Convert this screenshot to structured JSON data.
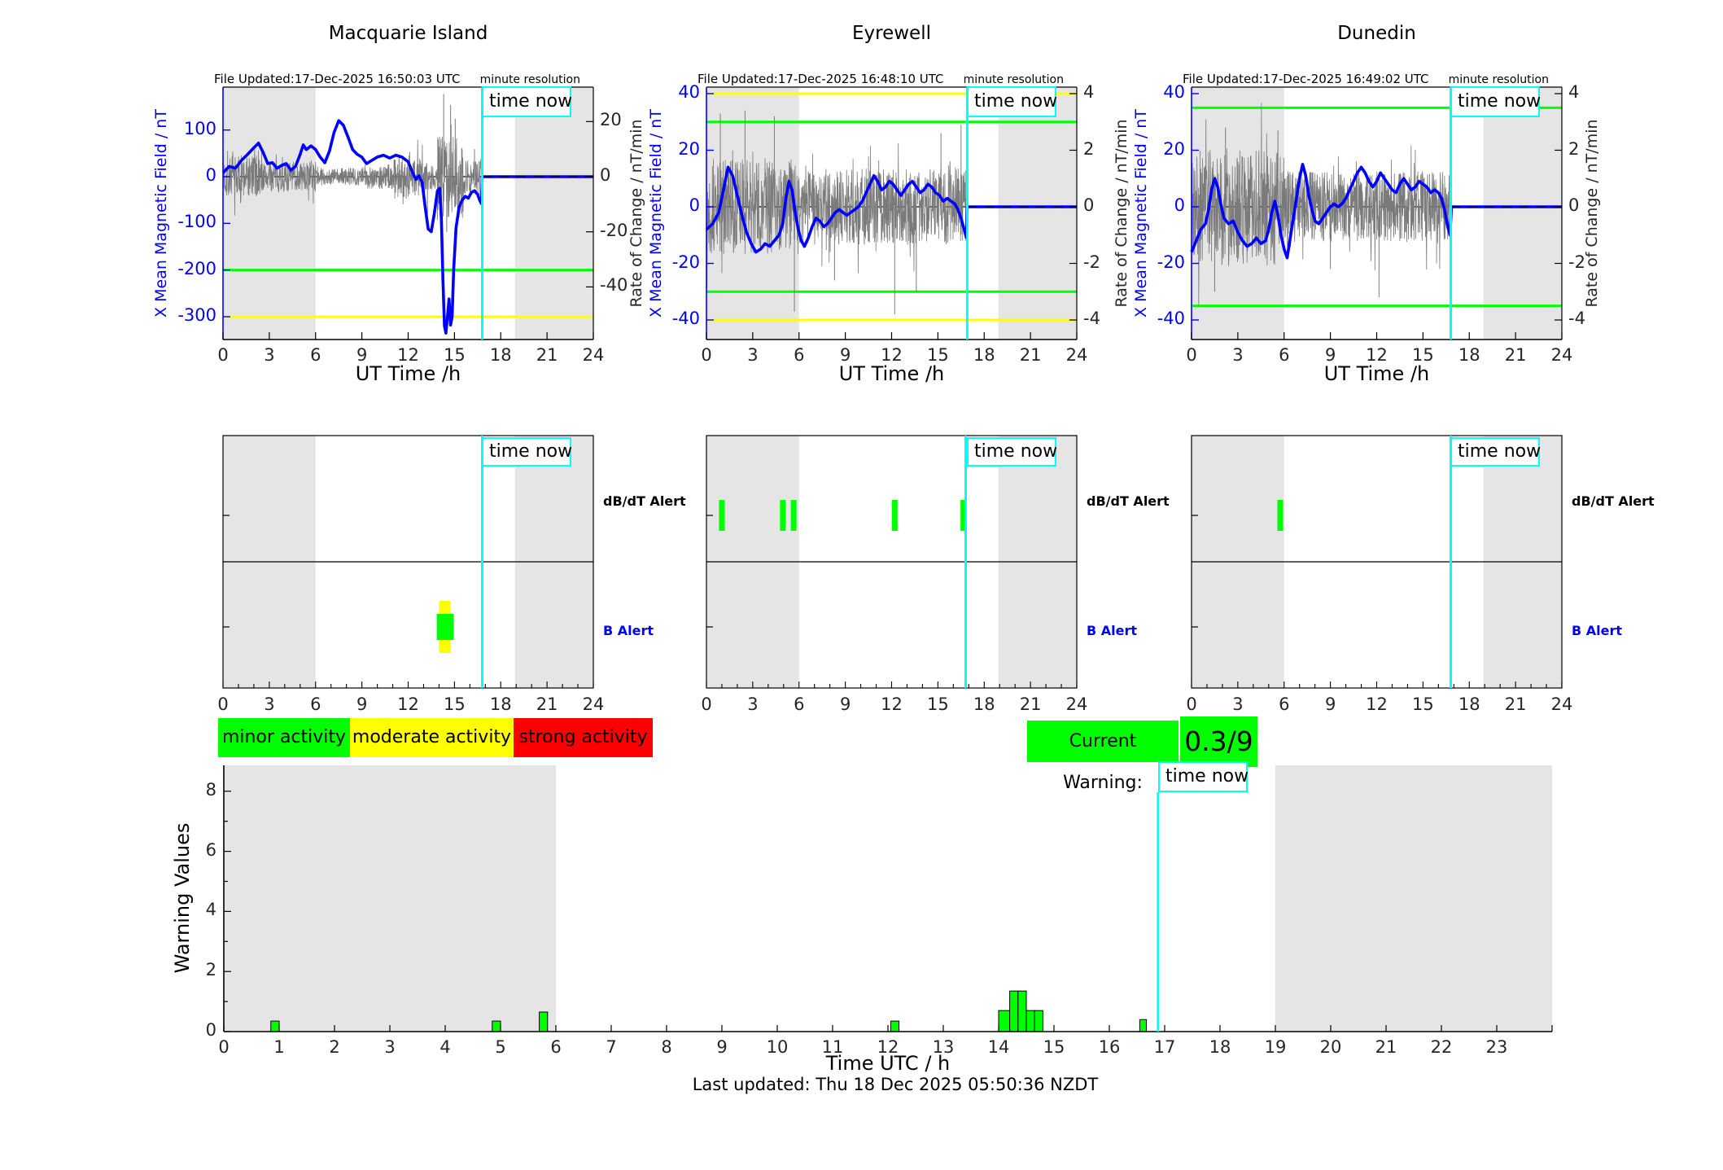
{
  "colors": {
    "accent_blue": "#0000FF",
    "noise_gray": "#7A7A7A",
    "band_gray": "#E5E5E5",
    "cyan": "#00FFFF",
    "green": "#00FF00",
    "yellow": "#FFFF00",
    "red": "#FF0000"
  },
  "labels": {
    "time_now": "time now",
    "minute_resolution": "minute resolution",
    "ut_time": "UT Time /h",
    "x_mean": "X Mean Magnetic Field / nT",
    "rate": "Rate of Change / nT/min",
    "warning_values": "Warning Values",
    "time_utc": "Time UTC / h",
    "footer": "Last updated: Thu 18 Dec 2025 05:50:36 NZDT",
    "dbdt_row": "dB/dT Alert",
    "b_row": "B Alert"
  },
  "legend": {
    "items": [
      {
        "label": "minor activity",
        "color": "#00FF00"
      },
      {
        "label": "moderate activity",
        "color": "#FFFF00"
      },
      {
        "label": "strong activity",
        "color": "#FF0000"
      }
    ]
  },
  "current_warning": {
    "label": "Current Warning:",
    "value": "0.3/9",
    "color": "#00FF00"
  },
  "chart_data": [
    {
      "type": "line",
      "station": "Macquarie Island",
      "file_updated": "File Updated:17-Dec-2025 16:50:03 UTC",
      "xlabel": "UT Time /h",
      "x_ticks": [
        0,
        3,
        6,
        9,
        12,
        15,
        18,
        21,
        24
      ],
      "left_axis": {
        "label": "X Mean Magnetic Field / nT",
        "ticks": [
          100,
          0,
          -100,
          -200,
          -300
        ],
        "range": [
          -349,
          192
        ]
      },
      "right_axis": {
        "label": "Rate of Change / nT/min",
        "ticks": [
          20,
          0,
          -20,
          -40
        ],
        "range": [
          -59,
          32.5
        ]
      },
      "thresholds": [
        {
          "color": "#00FF00",
          "value": -200
        },
        {
          "color": "#FFFF00",
          "value": -300
        }
      ],
      "shaded_hours": [
        [
          0,
          6
        ],
        [
          18.92,
          24
        ]
      ],
      "time_now": 16.8,
      "mean_field_series": [
        [
          0,
          8
        ],
        [
          0.4,
          22
        ],
        [
          0.8,
          18
        ],
        [
          1.2,
          35
        ],
        [
          1.6,
          48
        ],
        [
          2,
          62
        ],
        [
          2.3,
          72
        ],
        [
          2.6,
          52
        ],
        [
          2.9,
          28
        ],
        [
          3.2,
          30
        ],
        [
          3.5,
          18
        ],
        [
          3.8,
          24
        ],
        [
          4.1,
          28
        ],
        [
          4.4,
          14
        ],
        [
          4.7,
          22
        ],
        [
          5,
          48
        ],
        [
          5.2,
          68
        ],
        [
          5.4,
          58
        ],
        [
          5.7,
          66
        ],
        [
          6,
          58
        ],
        [
          6.3,
          42
        ],
        [
          6.6,
          30
        ],
        [
          6.9,
          55
        ],
        [
          7.2,
          95
        ],
        [
          7.5,
          120
        ],
        [
          7.8,
          110
        ],
        [
          8.1,
          85
        ],
        [
          8.4,
          58
        ],
        [
          8.7,
          48
        ],
        [
          9,
          42
        ],
        [
          9.3,
          28
        ],
        [
          9.6,
          34
        ],
        [
          10,
          42
        ],
        [
          10.4,
          46
        ],
        [
          10.8,
          40
        ],
        [
          11.2,
          46
        ],
        [
          11.6,
          42
        ],
        [
          12,
          32
        ],
        [
          12.3,
          8
        ],
        [
          12.5,
          -6
        ],
        [
          12.7,
          2
        ],
        [
          12.9,
          -12
        ],
        [
          13.1,
          -65
        ],
        [
          13.3,
          -112
        ],
        [
          13.5,
          -118
        ],
        [
          13.7,
          -78
        ],
        [
          13.9,
          -30
        ],
        [
          14.05,
          -25
        ],
        [
          14.15,
          -90
        ],
        [
          14.25,
          -220
        ],
        [
          14.35,
          -320
        ],
        [
          14.45,
          -335
        ],
        [
          14.55,
          -300
        ],
        [
          14.65,
          -262
        ],
        [
          14.75,
          -318
        ],
        [
          14.85,
          -300
        ],
        [
          14.95,
          -200
        ],
        [
          15.1,
          -110
        ],
        [
          15.3,
          -65
        ],
        [
          15.5,
          -50
        ],
        [
          15.7,
          -42
        ],
        [
          15.9,
          -46
        ],
        [
          16.1,
          -34
        ],
        [
          16.3,
          -30
        ],
        [
          16.5,
          -38
        ],
        [
          16.65,
          -52
        ],
        [
          16.75,
          -58
        ],
        [
          16.8,
          0
        ],
        [
          24,
          0
        ]
      ],
      "noise": {
        "seed": 7,
        "envelope": [
          [
            0,
            2.5,
            8
          ],
          [
            2.5,
            6,
            5.5
          ],
          [
            6,
            9,
            3.2
          ],
          [
            9,
            11,
            4.5
          ],
          [
            11,
            13,
            8
          ],
          [
            13,
            13.9,
            5
          ],
          [
            13.9,
            15.6,
            15
          ],
          [
            15.6,
            16.8,
            7
          ]
        ],
        "spikes": [
          [
            12.1,
            9
          ],
          [
            13.25,
            -14
          ],
          [
            14.3,
            30
          ],
          [
            14.5,
            -20
          ],
          [
            14.75,
            26
          ],
          [
            15.05,
            21
          ],
          [
            16.3,
            10
          ]
        ]
      }
    },
    {
      "type": "line",
      "station": "Eyrewell",
      "file_updated": "File Updated:17-Dec-2025 16:48:10 UTC",
      "xlabel": "UT Time /h",
      "x_ticks": [
        0,
        3,
        6,
        9,
        12,
        15,
        18,
        21,
        24
      ],
      "left_axis": {
        "label": "X Mean Magnetic Field / nT",
        "ticks": [
          40,
          20,
          0,
          -20,
          -40
        ],
        "range": [
          -46.9,
          42.3
        ]
      },
      "right_axis": {
        "label": "Rate of Change / nT/min",
        "ticks": [
          4,
          2,
          0,
          -2,
          -4
        ],
        "range": [
          -4.69,
          4.23
        ]
      },
      "thresholds": [
        {
          "color": "#FFFF00",
          "value": 40
        },
        {
          "color": "#00FF00",
          "value": 30
        },
        {
          "color": "#00FF00",
          "value": -30
        },
        {
          "color": "#FFFF00",
          "value": -40
        }
      ],
      "shaded_hours": [
        [
          0,
          6
        ],
        [
          18.92,
          24
        ]
      ],
      "time_now": 16.9,
      "mean_field_series": [
        [
          0,
          -8
        ],
        [
          0.4,
          -6
        ],
        [
          0.8,
          -2
        ],
        [
          1.1,
          6
        ],
        [
          1.4,
          14
        ],
        [
          1.7,
          11
        ],
        [
          2,
          4
        ],
        [
          2.3,
          -3
        ],
        [
          2.6,
          -9
        ],
        [
          2.9,
          -13
        ],
        [
          3.2,
          -16
        ],
        [
          3.5,
          -15
        ],
        [
          3.8,
          -13
        ],
        [
          4.1,
          -14
        ],
        [
          4.4,
          -12
        ],
        [
          4.7,
          -10
        ],
        [
          4.95,
          -6
        ],
        [
          5.15,
          3
        ],
        [
          5.35,
          9
        ],
        [
          5.55,
          6
        ],
        [
          5.75,
          -2
        ],
        [
          5.95,
          -8
        ],
        [
          6.15,
          -12
        ],
        [
          6.35,
          -14
        ],
        [
          6.6,
          -11
        ],
        [
          6.85,
          -7
        ],
        [
          7.1,
          -4
        ],
        [
          7.35,
          -5
        ],
        [
          7.6,
          -7
        ],
        [
          7.85,
          -6
        ],
        [
          8.1,
          -4
        ],
        [
          8.35,
          -2
        ],
        [
          8.6,
          -1
        ],
        [
          8.85,
          -2
        ],
        [
          9.1,
          -3
        ],
        [
          9.35,
          -2
        ],
        [
          9.6,
          -1
        ],
        [
          9.85,
          0
        ],
        [
          10.1,
          2
        ],
        [
          10.35,
          5
        ],
        [
          10.6,
          8
        ],
        [
          10.85,
          11
        ],
        [
          11.1,
          9
        ],
        [
          11.35,
          6
        ],
        [
          11.6,
          7
        ],
        [
          11.85,
          9
        ],
        [
          12.1,
          8
        ],
        [
          12.35,
          6
        ],
        [
          12.6,
          4
        ],
        [
          12.85,
          6
        ],
        [
          13.1,
          8
        ],
        [
          13.35,
          9
        ],
        [
          13.6,
          7
        ],
        [
          13.85,
          5
        ],
        [
          14.1,
          6
        ],
        [
          14.35,
          8
        ],
        [
          14.6,
          7
        ],
        [
          14.85,
          5
        ],
        [
          15.1,
          4
        ],
        [
          15.35,
          2
        ],
        [
          15.6,
          3
        ],
        [
          15.85,
          2
        ],
        [
          16.1,
          1
        ],
        [
          16.3,
          -1
        ],
        [
          16.5,
          -4
        ],
        [
          16.7,
          -8
        ],
        [
          16.85,
          -11
        ],
        [
          16.9,
          0
        ],
        [
          24,
          0
        ]
      ],
      "noise": {
        "seed": 13,
        "envelope": [
          [
            0,
            6,
            1.7
          ],
          [
            6,
            16.9,
            1.35
          ]
        ],
        "spikes": [
          [
            0.9,
            3.3
          ],
          [
            2.5,
            3.4
          ],
          [
            4.4,
            3.2
          ],
          [
            5.7,
            -3.7
          ],
          [
            8.3,
            -2.6
          ],
          [
            12.2,
            -3.8
          ],
          [
            13.6,
            -3.0
          ],
          [
            15.2,
            2.6
          ],
          [
            16.5,
            2.9
          ]
        ]
      }
    },
    {
      "type": "line",
      "station": "Dunedin",
      "file_updated": "File Updated:17-Dec-2025 16:49:02 UTC",
      "xlabel": "UT Time /h",
      "x_ticks": [
        0,
        3,
        6,
        9,
        12,
        15,
        18,
        21,
        24
      ],
      "left_axis": {
        "label": "X Mean Magnetic Field / nT",
        "ticks": [
          40,
          20,
          0,
          -20,
          -40
        ],
        "range": [
          -46.9,
          42.3
        ]
      },
      "right_axis": {
        "label": "Rate of Change / nT/min",
        "ticks": [
          4,
          2,
          0,
          -2,
          -4
        ],
        "range": [
          -4.69,
          4.23
        ]
      },
      "thresholds": [
        {
          "color": "#00FF00",
          "value": 35
        },
        {
          "color": "#00FF00",
          "value": -35
        }
      ],
      "shaded_hours": [
        [
          0,
          6
        ],
        [
          18.92,
          24
        ]
      ],
      "time_now": 16.8,
      "mean_field_series": [
        [
          0,
          -16
        ],
        [
          0.3,
          -12
        ],
        [
          0.6,
          -8
        ],
        [
          0.9,
          -6
        ],
        [
          1.1,
          -1
        ],
        [
          1.3,
          6
        ],
        [
          1.5,
          10
        ],
        [
          1.7,
          7
        ],
        [
          1.9,
          1
        ],
        [
          2.1,
          -4
        ],
        [
          2.4,
          -6
        ],
        [
          2.7,
          -5
        ],
        [
          3,
          -9
        ],
        [
          3.3,
          -12
        ],
        [
          3.6,
          -14
        ],
        [
          3.9,
          -13
        ],
        [
          4.2,
          -11
        ],
        [
          4.5,
          -13
        ],
        [
          4.8,
          -12
        ],
        [
          5,
          -8
        ],
        [
          5.2,
          -2
        ],
        [
          5.4,
          2
        ],
        [
          5.6,
          -3
        ],
        [
          5.8,
          -10
        ],
        [
          6,
          -15
        ],
        [
          6.2,
          -18
        ],
        [
          6.4,
          -11
        ],
        [
          6.6,
          -4
        ],
        [
          6.8,
          3
        ],
        [
          7,
          10
        ],
        [
          7.2,
          15
        ],
        [
          7.4,
          11
        ],
        [
          7.6,
          4
        ],
        [
          7.8,
          -1
        ],
        [
          8,
          -5
        ],
        [
          8.25,
          -6
        ],
        [
          8.5,
          -4
        ],
        [
          8.75,
          -2
        ],
        [
          9,
          0
        ],
        [
          9.25,
          1
        ],
        [
          9.5,
          0
        ],
        [
          9.75,
          1
        ],
        [
          10,
          3
        ],
        [
          10.25,
          6
        ],
        [
          10.5,
          9
        ],
        [
          10.75,
          12
        ],
        [
          11,
          14
        ],
        [
          11.25,
          12
        ],
        [
          11.5,
          9
        ],
        [
          11.75,
          7
        ],
        [
          12,
          9
        ],
        [
          12.25,
          12
        ],
        [
          12.5,
          10
        ],
        [
          12.75,
          8
        ],
        [
          13,
          6
        ],
        [
          13.25,
          5
        ],
        [
          13.5,
          8
        ],
        [
          13.75,
          10
        ],
        [
          14,
          8
        ],
        [
          14.25,
          6
        ],
        [
          14.5,
          7
        ],
        [
          14.75,
          9
        ],
        [
          15,
          8
        ],
        [
          15.25,
          7
        ],
        [
          15.5,
          5
        ],
        [
          15.75,
          6
        ],
        [
          16,
          5
        ],
        [
          16.2,
          3
        ],
        [
          16.4,
          -1
        ],
        [
          16.6,
          -7
        ],
        [
          16.75,
          -10
        ],
        [
          16.85,
          0
        ],
        [
          24,
          0
        ]
      ],
      "noise": {
        "seed": 21,
        "envelope": [
          [
            0,
            6,
            2.1
          ],
          [
            6,
            16.8,
            1.25
          ]
        ],
        "spikes": [
          [
            1.5,
            -3.0
          ],
          [
            2.2,
            2.8
          ],
          [
            5.6,
            2.7
          ],
          [
            9.0,
            -2.2
          ],
          [
            12.15,
            -3.2
          ]
        ]
      }
    },
    {
      "type": "event-timeline",
      "rows": [
        "dB/dT Alert",
        "B Alert"
      ],
      "x_ticks": [
        0,
        3,
        6,
        9,
        12,
        15,
        18,
        21,
        24
      ],
      "shaded_hours": [
        [
          0,
          6
        ],
        [
          18.92,
          24
        ]
      ],
      "time_now": 16.8,
      "stations": [
        {
          "name": "Macquarie Island",
          "dbdt_green_ticks": [],
          "b_alert": {
            "yellow_span": [
              14.0,
              14.75
            ],
            "green_span": [
              13.85,
              14.95
            ]
          }
        },
        {
          "name": "Eyrewell",
          "dbdt_green_ticks": [
            1.0,
            4.95,
            5.65,
            12.2,
            16.65
          ],
          "b_alert": null
        },
        {
          "name": "Dunedin",
          "dbdt_green_ticks": [
            5.75
          ],
          "b_alert": null
        }
      ]
    },
    {
      "type": "bar",
      "title": "Warning Values",
      "ylabel": "Warning Values",
      "xlabel": "Time UTC / h",
      "x_ticks": [
        0,
        1,
        2,
        3,
        4,
        5,
        6,
        7,
        8,
        9,
        10,
        11,
        12,
        13,
        14,
        15,
        16,
        17,
        18,
        19,
        20,
        21,
        22,
        23
      ],
      "y_ticks": [
        0,
        2,
        4,
        6,
        8
      ],
      "ylim": [
        0,
        8.9
      ],
      "shaded_hours": [
        [
          0,
          6
        ],
        [
          19,
          24
        ]
      ],
      "time_now": 16.88,
      "bar_color": "#00FF00",
      "bars": [
        [
          0.85,
          0.35,
          0.15
        ],
        [
          4.85,
          0.35,
          0.15
        ],
        [
          5.7,
          0.65,
          0.15
        ],
        [
          12.05,
          0.35,
          0.15
        ],
        [
          14.0,
          0.7,
          0.2
        ],
        [
          14.2,
          1.35,
          0.15
        ],
        [
          14.35,
          1.35,
          0.15
        ],
        [
          14.5,
          0.7,
          0.15
        ],
        [
          14.65,
          0.7,
          0.15
        ],
        [
          16.55,
          0.4,
          0.12
        ]
      ]
    }
  ]
}
